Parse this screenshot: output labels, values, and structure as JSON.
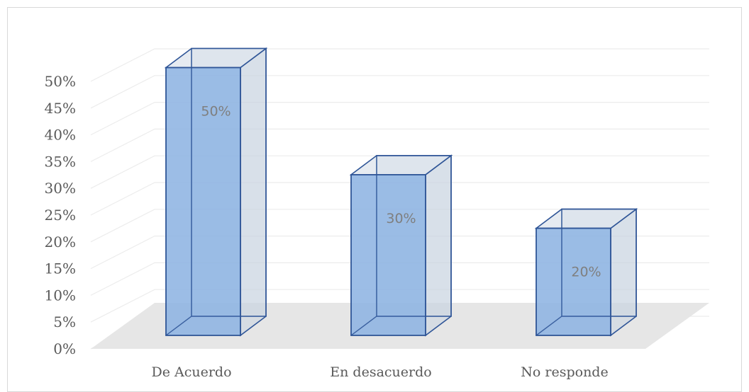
{
  "chart_data": {
    "type": "bar",
    "categories": [
      "De Acuerdo",
      "En desacuerdo",
      "No responde"
    ],
    "values": [
      50,
      30,
      20
    ],
    "data_labels": [
      "50%",
      "30%",
      "20%"
    ],
    "y_ticks": [
      "0%",
      "5%",
      "10%",
      "15%",
      "20%",
      "25%",
      "30%",
      "35%",
      "40%",
      "45%",
      "50%"
    ],
    "ylim": [
      0,
      50
    ],
    "grid": true,
    "legend": "none",
    "style": "3d-column",
    "colors": {
      "bar_front": "#8eb4e3",
      "bar_side": "#c9d3e0",
      "bar_top": "#d5dde8",
      "bar_edge": "#2f5597",
      "floor": "#e6e6e6",
      "grid": "#ececec",
      "text": "#595959",
      "data_label": "#7f7f7f"
    }
  }
}
